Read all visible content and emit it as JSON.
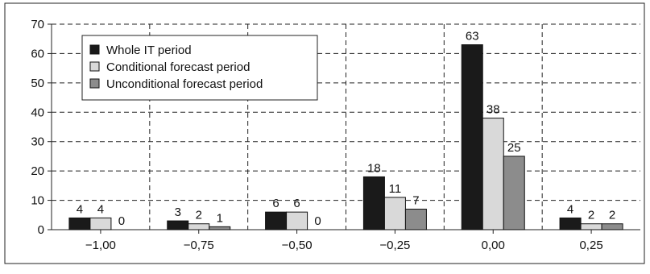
{
  "chart_data": {
    "type": "bar",
    "categories": [
      "−1,00",
      "−0,75",
      "−0,50",
      "−0,25",
      "0,00",
      "0,25"
    ],
    "series": [
      {
        "name": "Whole IT period",
        "values": [
          4,
          3,
          6,
          18,
          63,
          4
        ],
        "labels": [
          "4",
          "3",
          "6",
          "18",
          "63",
          "4"
        ],
        "color": "#1a1a1a"
      },
      {
        "name": "Conditional forecast period",
        "values": [
          4,
          2,
          6,
          11,
          38,
          2
        ],
        "labels": [
          "4",
          "2",
          "6",
          "11",
          "38",
          "2"
        ],
        "color": "#d9d9d9"
      },
      {
        "name": "Unconditional forecast period",
        "values": [
          0,
          1,
          0,
          7,
          25,
          2
        ],
        "labels": [
          "0",
          "1",
          "0",
          "7",
          "25",
          "2"
        ],
        "color": "#8c8c8c"
      }
    ],
    "yticks": [
      "0",
      "10",
      "20",
      "30",
      "40",
      "50",
      "60",
      "70"
    ],
    "ylim": [
      0,
      70
    ],
    "grid": true,
    "legend_position": "top-left",
    "title": "",
    "xlabel": "",
    "ylabel": ""
  }
}
